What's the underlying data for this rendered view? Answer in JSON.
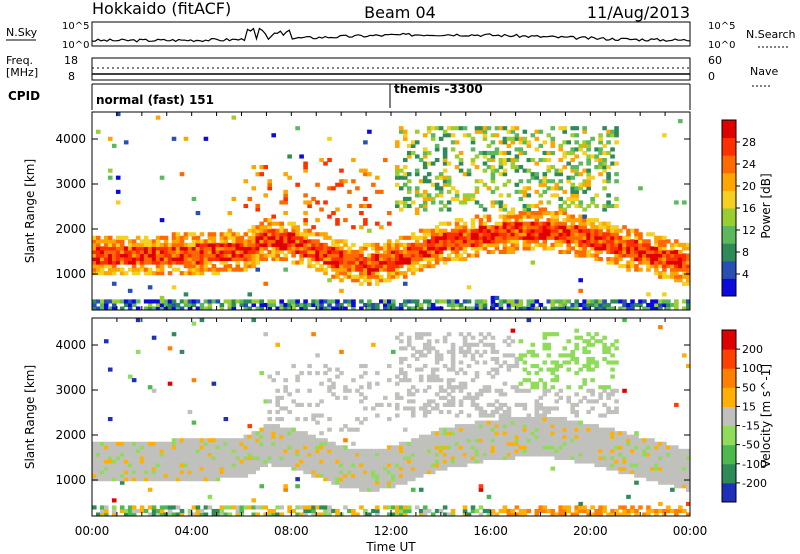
{
  "header": {
    "station": "Hokkaido (fitACF)",
    "beam": "Beam 04",
    "date": "11/Aug/2013"
  },
  "noise_panel": {
    "left_label": "N.Sky",
    "right_label": "N.Search",
    "ticks_left": [
      "10^5",
      "10^0"
    ],
    "ticks_right": [
      "10^5",
      "10^0"
    ]
  },
  "freq_panel": {
    "left_label_line1": "Freq.",
    "left_label_line2": "[MHz]",
    "ticks_left": [
      "18",
      "8"
    ],
    "right_label": "Nave",
    "ticks_right": [
      "60",
      "0"
    ]
  },
  "cpid_panel": {
    "label": "CPID",
    "modes": [
      {
        "name": "normal (fast) 151",
        "start_hour": 0
      },
      {
        "name": "themis -3300",
        "start_hour": 12
      }
    ]
  },
  "chart_data": [
    {
      "type": "heatmap",
      "name": "power",
      "ylabel": "Slant Range [km]",
      "yticks": [
        1000,
        2000,
        3000,
        4000
      ],
      "ylim": [
        200,
        4600
      ],
      "xlim": [
        0,
        24
      ],
      "colorbar_label": "Power [dB]",
      "colorbar_ticks": [
        "28",
        "24",
        "20",
        "16",
        "12",
        "8",
        "4"
      ],
      "colorbar_colors": [
        "#0a0adc",
        "#2850b4",
        "#2e8b57",
        "#5cb85c",
        "#9acd32",
        "#f5d020",
        "#ffa500",
        "#ff6a00",
        "#ff3000",
        "#e00000"
      ],
      "bands": [
        {
          "x": [
            0,
            4,
            6,
            7,
            8,
            9,
            10,
            11,
            12,
            14,
            16,
            18,
            20,
            22,
            24
          ],
          "y": [
            1400,
            1450,
            1500,
            1800,
            1700,
            1500,
            1300,
            1200,
            1300,
            1700,
            1900,
            2000,
            1800,
            1500,
            1200
          ],
          "width": 450,
          "level": "high"
        }
      ]
    },
    {
      "type": "heatmap",
      "name": "velocity",
      "ylabel": "Slant Range [km]",
      "yticks": [
        1000,
        2000,
        3000,
        4000
      ],
      "ylim": [
        200,
        4600
      ],
      "xlim": [
        0,
        24
      ],
      "colorbar_label": "Velocity [m s^-1]",
      "colorbar_ticks": [
        "200",
        "100",
        "50",
        "15",
        "-15",
        "-50",
        "-100",
        "-200"
      ],
      "colorbar_colors": [
        "#1e2fb8",
        "#2e8b57",
        "#4db84d",
        "#8fdc5a",
        "#c0c0bc",
        "#ffb000",
        "#ff8000",
        "#ff4000",
        "#e00000"
      ]
    }
  ],
  "x_axis": {
    "ticks": [
      "00:00",
      "04:00",
      "08:00",
      "12:00",
      "16:00",
      "20:00",
      "00:00"
    ],
    "label": "Time UT"
  }
}
